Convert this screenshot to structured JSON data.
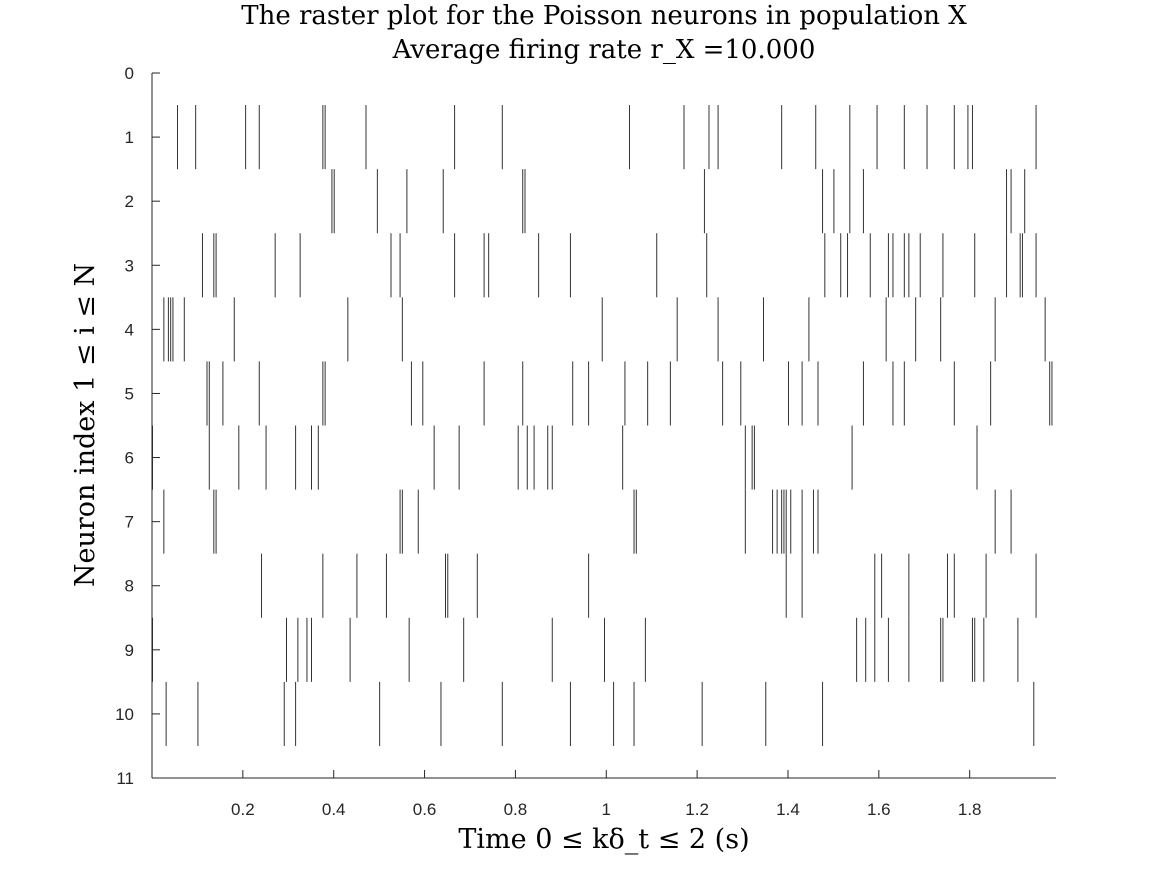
{
  "chart_data": {
    "type": "scatter",
    "subtype": "raster",
    "title": "The raster plot for the Poisson neurons in population X",
    "subtitle": "Average firing rate r_X =10.000",
    "xlabel": "Time 0 ≤ kδ_t ≤ 2 (s)",
    "ylabel": "Neuron index 1 ≤ i ≤ N",
    "xlim": [
      0,
      1.99
    ],
    "ylim": [
      0,
      11
    ],
    "y_reversed": true,
    "x_ticks": [
      0.2,
      0.4,
      0.6,
      0.8,
      1,
      1.2,
      1.4,
      1.6,
      1.8
    ],
    "x_tick_labels": [
      "0.2",
      "0.4",
      "0.6",
      "0.8",
      "1",
      "1.2",
      "1.4",
      "1.6",
      "1.8"
    ],
    "y_ticks": [
      0,
      1,
      2,
      3,
      4,
      5,
      6,
      7,
      8,
      9,
      10,
      11
    ],
    "y_tick_labels": [
      "0",
      "1",
      "2",
      "3",
      "4",
      "5",
      "6",
      "7",
      "8",
      "9",
      "10",
      "11"
    ],
    "grid": false,
    "spike_color": "#333333",
    "series": [
      {
        "neuron": 1,
        "times": [
          0.055,
          0.095,
          0.205,
          0.235,
          0.375,
          0.38,
          0.47,
          0.665,
          0.77,
          1.05,
          1.17,
          1.225,
          1.245,
          1.385,
          1.46,
          1.535,
          1.595,
          1.655,
          1.705,
          1.765,
          1.795,
          1.805,
          1.945
        ]
      },
      {
        "neuron": 2,
        "times": [
          0.395,
          0.4,
          0.495,
          0.56,
          0.64,
          0.815,
          0.82,
          1.215,
          1.475,
          1.5,
          1.535,
          1.565,
          1.88,
          1.89,
          1.92
        ]
      },
      {
        "neuron": 3,
        "times": [
          0.11,
          0.135,
          0.14,
          0.27,
          0.325,
          0.525,
          0.545,
          0.665,
          0.73,
          0.74,
          0.85,
          0.92,
          1.11,
          1.22,
          1.48,
          1.515,
          1.53,
          1.58,
          1.62,
          1.63,
          1.655,
          1.665,
          1.69,
          1.74,
          1.81,
          1.88,
          1.91,
          1.915,
          1.945
        ]
      },
      {
        "neuron": 4,
        "times": [
          0.025,
          0.035,
          0.04,
          0.045,
          0.07,
          0.18,
          0.43,
          0.55,
          0.99,
          1.155,
          1.245,
          1.345,
          1.445,
          1.615,
          1.68,
          1.735,
          1.855,
          1.965
        ]
      },
      {
        "neuron": 5,
        "times": [
          0.12,
          0.125,
          0.155,
          0.235,
          0.375,
          0.38,
          0.57,
          0.595,
          0.73,
          0.815,
          0.925,
          0.96,
          1.04,
          1.09,
          1.14,
          1.255,
          1.295,
          1.4,
          1.43,
          1.465,
          1.565,
          1.63,
          1.655,
          1.765,
          1.845,
          1.975,
          1.98
        ]
      },
      {
        "neuron": 6,
        "times": [
          0.0,
          0.125,
          0.19,
          0.25,
          0.315,
          0.35,
          0.365,
          0.62,
          0.675,
          0.805,
          0.825,
          0.84,
          0.87,
          0.88,
          1.035,
          1.305,
          1.32,
          1.325,
          1.54,
          1.815
        ]
      },
      {
        "neuron": 7,
        "times": [
          0.025,
          0.135,
          0.14,
          0.545,
          0.55,
          0.585,
          1.06,
          1.065,
          1.305,
          1.365,
          1.375,
          1.385,
          1.39,
          1.395,
          1.405,
          1.43,
          1.455,
          1.465,
          1.855,
          1.89
        ]
      },
      {
        "neuron": 8,
        "times": [
          0.24,
          0.375,
          0.45,
          0.515,
          0.645,
          0.65,
          0.715,
          0.96,
          1.395,
          1.43,
          1.59,
          1.605,
          1.665,
          1.75,
          1.765,
          1.835,
          1.945
        ]
      },
      {
        "neuron": 9,
        "times": [
          0.0,
          0.295,
          0.32,
          0.34,
          0.35,
          0.435,
          0.565,
          0.685,
          0.88,
          0.995,
          1.085,
          1.55,
          1.57,
          1.59,
          1.62,
          1.665,
          1.735,
          1.74,
          1.805,
          1.81,
          1.83,
          1.905
        ]
      },
      {
        "neuron": 10,
        "times": [
          0.03,
          0.1,
          0.29,
          0.315,
          0.5,
          0.635,
          0.77,
          0.92,
          1.015,
          1.06,
          1.21,
          1.35,
          1.475,
          1.94
        ]
      }
    ]
  }
}
